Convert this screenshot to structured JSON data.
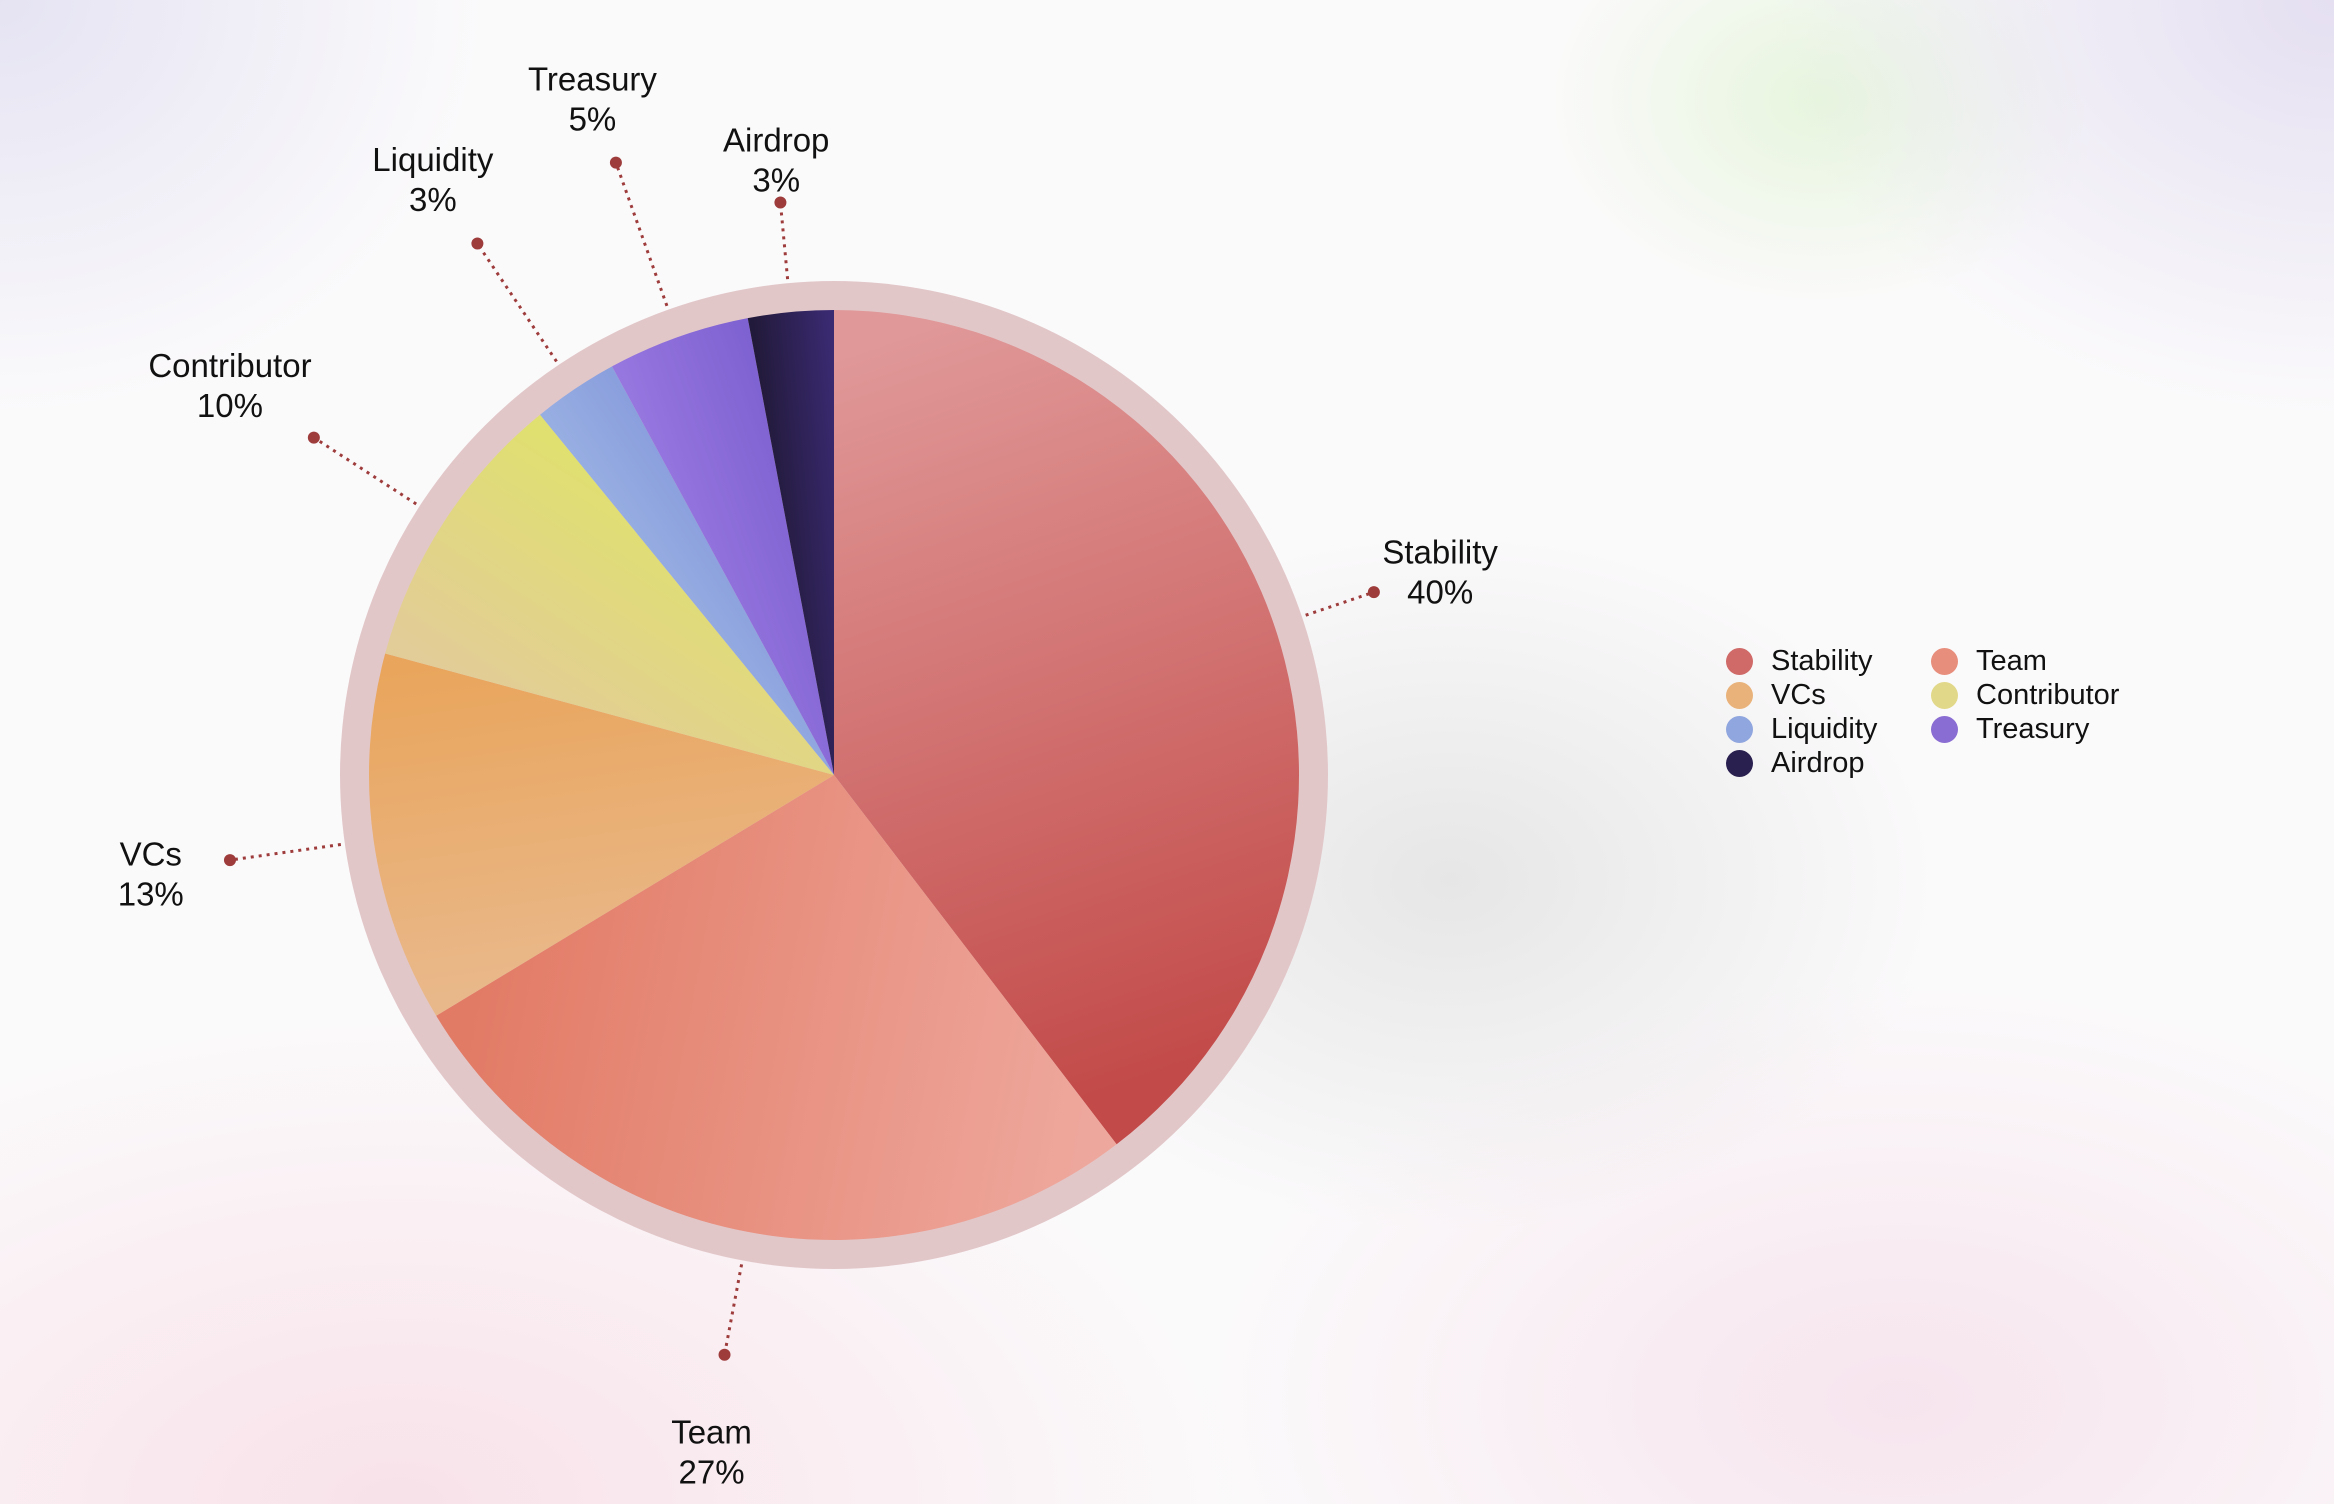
{
  "chart_data": {
    "type": "pie",
    "title": "",
    "slices": [
      {
        "label": "Stability",
        "value": 40,
        "display": "40%",
        "color": "#cf6a68",
        "shade": "#c24a48",
        "light": "#e09898"
      },
      {
        "label": "Team",
        "value": 27,
        "display": "27%",
        "color": "#e88e7c",
        "shade": "#e27b66",
        "light": "#eea79c"
      },
      {
        "label": "VCs",
        "value": 13,
        "display": "13%",
        "color": "#e9b27a",
        "shade": "#e9a55c",
        "light": "#e9b88a"
      },
      {
        "label": "Contributor",
        "value": 10,
        "display": "10%",
        "color": "#e2d889",
        "shade": "#e0e070",
        "light": "#e2cc98"
      },
      {
        "label": "Liquidity",
        "value": 3,
        "display": "3%",
        "color": "#90a6de",
        "shade": "#8a9fdd",
        "light": "#97aee2"
      },
      {
        "label": "Treasury",
        "value": 5,
        "display": "5%",
        "color": "#8a6dd2",
        "shade": "#7f62d1",
        "light": "#9676df"
      },
      {
        "label": "Airdrop",
        "value": 3,
        "display": "3%",
        "color": "#2a2050",
        "shade": "#3a2a72",
        "light": "#221a3a"
      }
    ],
    "legend": {
      "placement": "right",
      "columns": 2,
      "items": [
        "Stability",
        "Team",
        "VCs",
        "Contributor",
        "Liquidity",
        "Treasury",
        "Airdrop"
      ]
    },
    "label_style": "callout",
    "leader_color": "#9e3c3c",
    "ring_color": "#e2c7c9"
  }
}
